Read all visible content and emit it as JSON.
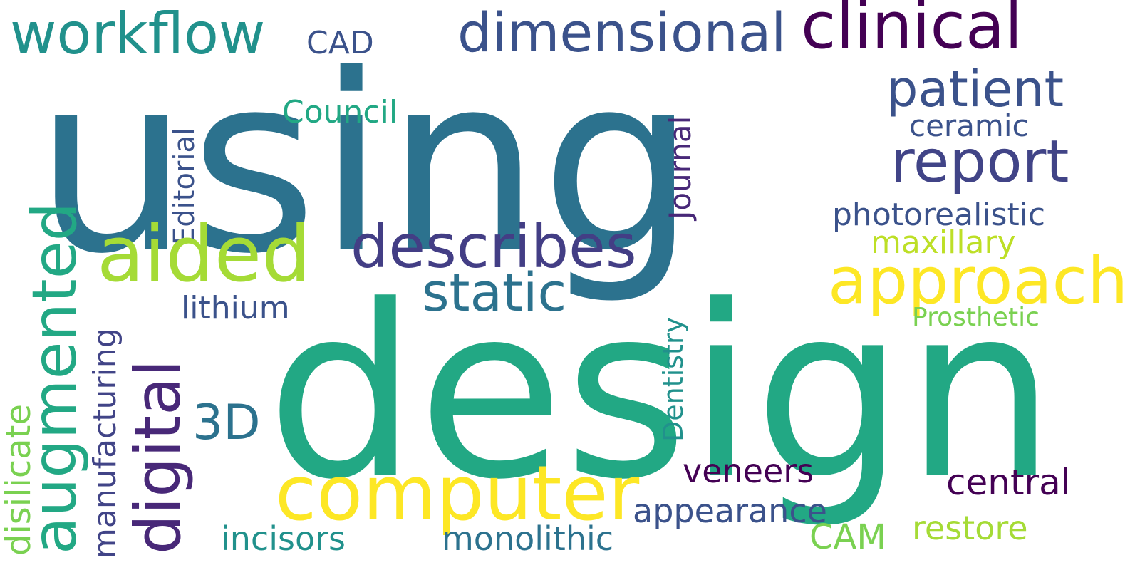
{
  "words": [
    {
      "text": "using",
      "color": "#2c728e"
    },
    {
      "text": "design",
      "color": "#22a884"
    },
    {
      "text": "workflow",
      "color": "#21918c"
    },
    {
      "text": "CAD",
      "color": "#3b528b"
    },
    {
      "text": "dimensional",
      "color": "#3b528b"
    },
    {
      "text": "clinical",
      "color": "#440154"
    },
    {
      "text": "patient",
      "color": "#3b528b"
    },
    {
      "text": "ceramic",
      "color": "#3b528b"
    },
    {
      "text": "report",
      "color": "#414487"
    },
    {
      "text": "Council",
      "color": "#22a884"
    },
    {
      "text": "Editorial",
      "color": "#3b528b"
    },
    {
      "text": "Journal",
      "color": "#482878"
    },
    {
      "text": "photorealistic",
      "color": "#3b528b"
    },
    {
      "text": "maxillary",
      "color": "#bddf26"
    },
    {
      "text": "aided",
      "color": "#a5db36"
    },
    {
      "text": "describes",
      "color": "#433e85"
    },
    {
      "text": "approach",
      "color": "#fde725"
    },
    {
      "text": "static",
      "color": "#2c728e"
    },
    {
      "text": "augmented",
      "color": "#22a884"
    },
    {
      "text": "digital",
      "color": "#482878"
    },
    {
      "text": "lithium",
      "color": "#3b528b"
    },
    {
      "text": "manufacturing",
      "color": "#414487"
    },
    {
      "text": "Prosthetic",
      "color": "#7ad151"
    },
    {
      "text": "Dentistry",
      "color": "#21918c"
    },
    {
      "text": "3D",
      "color": "#2c728e"
    },
    {
      "text": "disilicate",
      "color": "#7ad151"
    },
    {
      "text": "computer",
      "color": "#fde725"
    },
    {
      "text": "veneers",
      "color": "#440154"
    },
    {
      "text": "central",
      "color": "#440154"
    },
    {
      "text": "appearance",
      "color": "#3b528b"
    },
    {
      "text": "incisors",
      "color": "#21918c"
    },
    {
      "text": "monolithic",
      "color": "#2c728e"
    },
    {
      "text": "CAM",
      "color": "#7ad151"
    },
    {
      "text": "restore",
      "color": "#a5db36"
    }
  ]
}
